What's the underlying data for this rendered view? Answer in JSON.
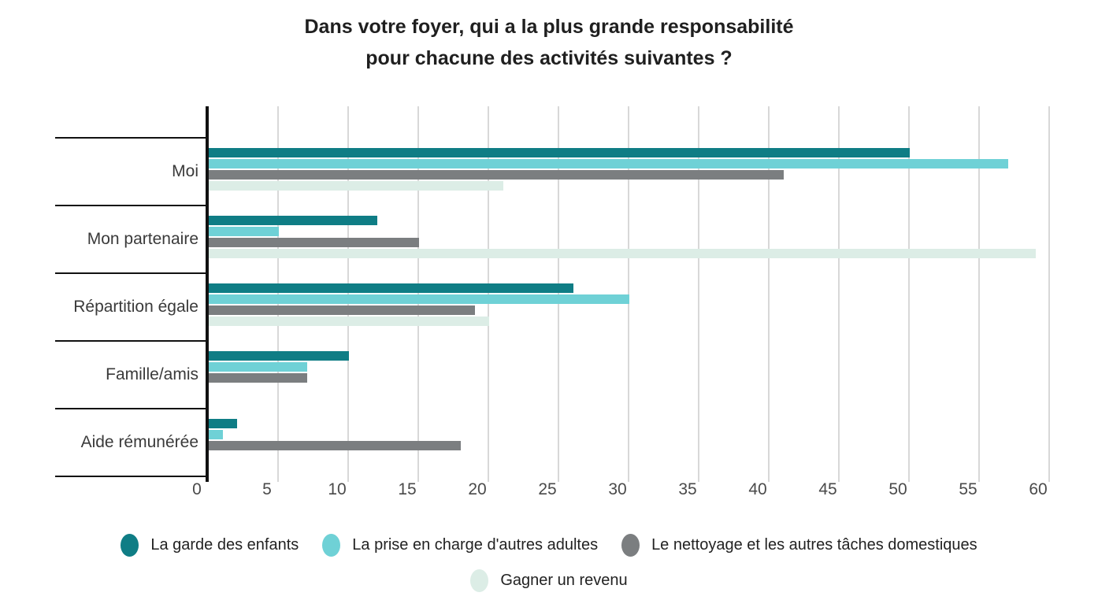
{
  "title": {
    "line1": "Dans votre foyer, qui a la plus grande responsabilité",
    "line2": "pour chacune des activités suivantes ?"
  },
  "chart_data": {
    "type": "bar",
    "orientation": "horizontal",
    "title": "Dans votre foyer, qui a la plus grande responsabilité pour chacune des activités suivantes ?",
    "categories": [
      "Moi",
      "Mon partenaire",
      "Répartition égale",
      "Famille/amis",
      "Aide rémunérée"
    ],
    "series": [
      {
        "name": "La garde des enfants",
        "color": "#0f7d85",
        "values": [
          50,
          12,
          26,
          10,
          2
        ]
      },
      {
        "name": "La prise en charge d'autres adultes",
        "color": "#6fd1d6",
        "values": [
          57,
          5,
          30,
          7,
          1
        ]
      },
      {
        "name": "Le nettoyage et les autres tâches domestiques",
        "color": "#7b7e80",
        "values": [
          41,
          15,
          19,
          7,
          18
        ]
      },
      {
        "name": "Gagner un revenu",
        "color": "#dcede6",
        "values": [
          21,
          59,
          20,
          0,
          0
        ]
      }
    ],
    "xlim": [
      0,
      60
    ],
    "x_ticks": [
      0,
      5,
      10,
      15,
      20,
      25,
      30,
      35,
      40,
      45,
      50,
      55,
      60
    ],
    "grid": true,
    "legend_position": "bottom",
    "legend_rows": [
      [
        0,
        1,
        2
      ],
      [
        3
      ]
    ]
  },
  "colors": {
    "axis": "#111111",
    "gridline": "#d8d8d8",
    "title_text": "#1f1f1f",
    "label_text": "#3a3a3a",
    "tick_text": "#4a4a4a",
    "background": "#ffffff"
  }
}
